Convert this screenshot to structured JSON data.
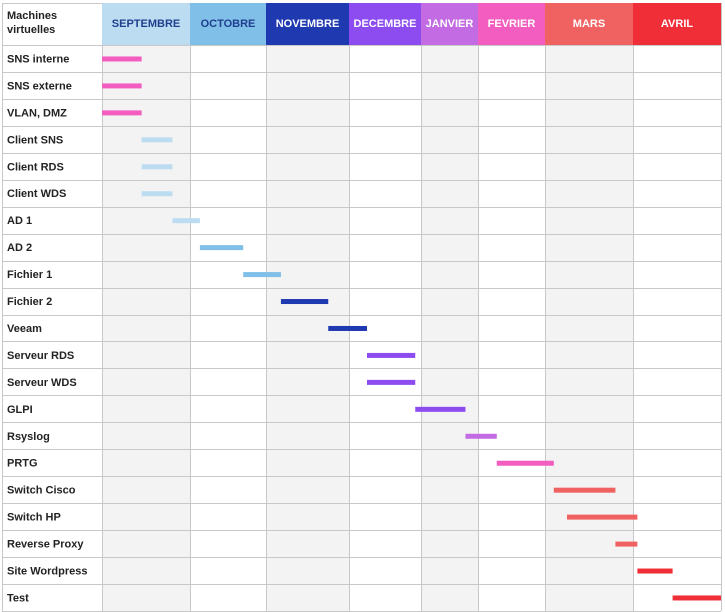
{
  "chart_data": {
    "type": "gantt",
    "corner_header": [
      "Machines",
      "virtuelles"
    ],
    "months": [
      {
        "label": "SEPTEMBRE",
        "bg": "#bcdcf2",
        "text": "#1f3f8f",
        "shaded": true
      },
      {
        "label": "OCTOBRE",
        "bg": "#80bfe8",
        "text": "#1f3f8f",
        "shaded": false
      },
      {
        "label": "NOVEMBRE",
        "bg": "#1f3ab1",
        "text": "#ffffff",
        "shaded": true
      },
      {
        "label": "DECEMBRE",
        "bg": "#8c4cf0",
        "text": "#ffffff",
        "shaded": false
      },
      {
        "label": "JANVIER",
        "bg": "#c26be3",
        "text": "#ffffff",
        "shaded": true
      },
      {
        "label": "FEVRIER",
        "bg": "#f25dbf",
        "text": "#ffffff",
        "shaded": false
      },
      {
        "label": "MARS",
        "bg": "#f06262",
        "text": "#ffffff",
        "shaded": true
      },
      {
        "label": "AVRIL",
        "bg": "#f02e38",
        "text": "#ffffff",
        "shaded": false
      }
    ],
    "tasks": [
      {
        "name": "SNS interne",
        "start": 0.0,
        "end": 0.45,
        "color": "#f25dbf"
      },
      {
        "name": "SNS externe",
        "start": 0.0,
        "end": 0.45,
        "color": "#f25dbf"
      },
      {
        "name": "VLAN, DMZ",
        "start": 0.0,
        "end": 0.45,
        "color": "#f25dbf"
      },
      {
        "name": "Client SNS",
        "start": 0.45,
        "end": 0.8,
        "color": "#bcdcf2"
      },
      {
        "name": "Client RDS",
        "start": 0.45,
        "end": 0.8,
        "color": "#bcdcf2"
      },
      {
        "name": "Client WDS",
        "start": 0.45,
        "end": 0.8,
        "color": "#bcdcf2"
      },
      {
        "name": "AD 1",
        "start": 0.8,
        "end": 1.13,
        "color": "#bcdcf2"
      },
      {
        "name": "AD 2",
        "start": 1.13,
        "end": 1.7,
        "color": "#80bfe8"
      },
      {
        "name": "Fichier 1",
        "start": 1.7,
        "end": 2.18,
        "color": "#80bfe8"
      },
      {
        "name": "Fichier 2",
        "start": 2.18,
        "end": 2.75,
        "color": "#1f3ab1"
      },
      {
        "name": "Veeam",
        "start": 2.75,
        "end": 3.25,
        "color": "#1f3ab1"
      },
      {
        "name": "Serveur RDS",
        "start": 3.25,
        "end": 3.92,
        "color": "#8c4cf0"
      },
      {
        "name": "Serveur WDS",
        "start": 3.25,
        "end": 3.92,
        "color": "#8c4cf0"
      },
      {
        "name": "GLPI",
        "start": 3.92,
        "end": 4.78,
        "color": "#8c4cf0"
      },
      {
        "name": "Rsyslog",
        "start": 4.78,
        "end": 5.28,
        "color": "#c26be3"
      },
      {
        "name": "PRTG",
        "start": 5.28,
        "end": 6.1,
        "color": "#f25dbf"
      },
      {
        "name": "Switch Cisco",
        "start": 6.1,
        "end": 6.8,
        "color": "#f06262"
      },
      {
        "name": "Switch HP",
        "start": 6.25,
        "end": 7.05,
        "color": "#f06262"
      },
      {
        "name": "Reverse Proxy",
        "start": 6.8,
        "end": 7.05,
        "color": "#f06262"
      },
      {
        "name": "Site Wordpress",
        "start": 7.05,
        "end": 7.45,
        "color": "#f02e38"
      },
      {
        "name": "Test",
        "start": 7.45,
        "end": 8.0,
        "color": "#f02e38"
      }
    ]
  }
}
